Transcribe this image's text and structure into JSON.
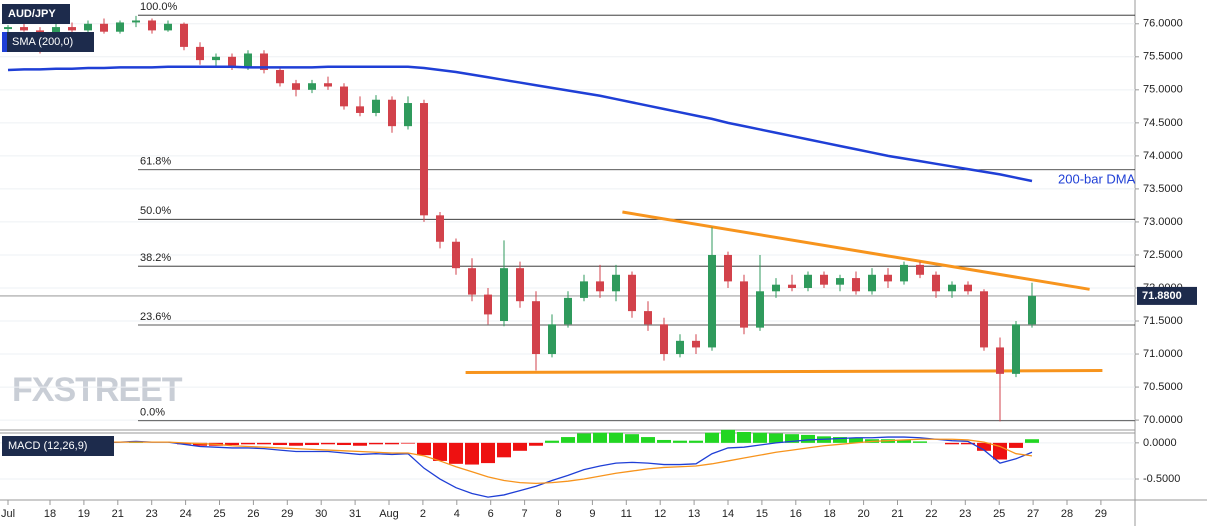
{
  "chart_data": [
    {
      "type": "candlestick",
      "title": "AUD/JPY",
      "up_color": "#2f9a5c",
      "down_color": "#d2424b",
      "candles": [
        [
          75.92,
          75.98,
          75.85,
          75.95
        ],
        [
          75.95,
          76.05,
          75.88,
          75.9
        ],
        [
          75.9,
          75.95,
          75.55,
          75.85
        ],
        [
          75.85,
          76.0,
          75.8,
          75.95
        ],
        [
          75.95,
          76.02,
          75.86,
          75.9
        ],
        [
          75.9,
          76.05,
          75.85,
          76.0
        ],
        [
          76.0,
          76.08,
          75.85,
          75.88
        ],
        [
          75.88,
          76.05,
          75.85,
          76.02
        ],
        [
          76.02,
          76.12,
          75.95,
          76.05
        ],
        [
          76.05,
          76.08,
          75.85,
          75.9
        ],
        [
          75.9,
          76.05,
          75.88,
          76.0
        ],
        [
          76.0,
          76.02,
          75.6,
          75.65
        ],
        [
          75.65,
          75.72,
          75.38,
          75.45
        ],
        [
          75.45,
          75.55,
          75.35,
          75.5
        ],
        [
          75.5,
          75.55,
          75.3,
          75.35
        ],
        [
          75.35,
          75.6,
          75.3,
          75.55
        ],
        [
          75.55,
          75.6,
          75.25,
          75.3
        ],
        [
          75.3,
          75.35,
          75.05,
          75.1
        ],
        [
          75.1,
          75.15,
          74.9,
          75.0
        ],
        [
          75.0,
          75.15,
          74.95,
          75.1
        ],
        [
          75.1,
          75.2,
          75.0,
          75.05
        ],
        [
          75.05,
          75.1,
          74.7,
          74.75
        ],
        [
          74.75,
          74.9,
          74.6,
          74.65
        ],
        [
          74.65,
          74.92,
          74.6,
          74.85
        ],
        [
          74.85,
          74.9,
          74.35,
          74.45
        ],
        [
          74.45,
          74.9,
          74.4,
          74.8
        ],
        [
          74.8,
          74.85,
          73.0,
          73.1
        ],
        [
          73.1,
          73.15,
          72.6,
          72.7
        ],
        [
          72.7,
          72.75,
          72.2,
          72.3
        ],
        [
          72.3,
          72.45,
          71.8,
          71.9
        ],
        [
          71.9,
          72.0,
          71.45,
          71.6
        ],
        [
          71.5,
          72.72,
          71.42,
          72.3
        ],
        [
          72.3,
          72.4,
          71.7,
          71.8
        ],
        [
          71.8,
          71.95,
          70.75,
          71.0
        ],
        [
          71.0,
          71.6,
          70.95,
          71.45
        ],
        [
          71.45,
          71.95,
          71.4,
          71.85
        ],
        [
          71.85,
          72.2,
          71.8,
          72.1
        ],
        [
          72.1,
          72.35,
          71.85,
          71.95
        ],
        [
          71.95,
          72.35,
          71.8,
          72.2
        ],
        [
          72.2,
          72.25,
          71.55,
          71.65
        ],
        [
          71.65,
          71.8,
          71.35,
          71.45
        ],
        [
          71.45,
          71.55,
          70.9,
          71.0
        ],
        [
          71.0,
          71.3,
          70.95,
          71.2
        ],
        [
          71.2,
          71.3,
          71.0,
          71.1
        ],
        [
          71.1,
          72.92,
          71.05,
          72.5
        ],
        [
          72.5,
          72.55,
          72.0,
          72.1
        ],
        [
          72.1,
          72.2,
          71.3,
          71.4
        ],
        [
          71.4,
          72.5,
          71.35,
          71.95
        ],
        [
          71.95,
          72.15,
          71.85,
          72.05
        ],
        [
          72.05,
          72.2,
          71.95,
          72.0
        ],
        [
          72.0,
          72.25,
          71.95,
          72.2
        ],
        [
          72.2,
          72.25,
          72.0,
          72.05
        ],
        [
          72.05,
          72.2,
          71.95,
          72.15
        ],
        [
          72.15,
          72.25,
          71.9,
          71.95
        ],
        [
          71.95,
          72.3,
          71.9,
          72.2
        ],
        [
          72.2,
          72.3,
          72.0,
          72.1
        ],
        [
          72.1,
          72.4,
          72.05,
          72.35
        ],
        [
          72.35,
          72.4,
          72.15,
          72.2
        ],
        [
          72.2,
          72.25,
          71.85,
          71.95
        ],
        [
          71.95,
          72.1,
          71.85,
          72.05
        ],
        [
          72.05,
          72.1,
          71.9,
          71.95
        ],
        [
          71.95,
          71.98,
          71.05,
          71.1
        ],
        [
          71.1,
          71.25,
          69.98,
          70.7
        ],
        [
          70.7,
          71.5,
          70.65,
          71.45
        ],
        [
          71.45,
          72.08,
          71.4,
          71.88
        ]
      ],
      "sma": {
        "name": "SMA (200,0)",
        "label": "200-bar DMA",
        "color": "#1f3fd6",
        "values": [
          75.3,
          75.31,
          75.31,
          75.32,
          75.32,
          75.33,
          75.33,
          75.34,
          75.34,
          75.34,
          75.35,
          75.35,
          75.35,
          75.35,
          75.35,
          75.34,
          75.34,
          75.34,
          75.34,
          75.34,
          75.35,
          75.35,
          75.35,
          75.35,
          75.35,
          75.35,
          75.33,
          75.3,
          75.27,
          75.23,
          75.19,
          75.15,
          75.11,
          75.07,
          75.03,
          74.99,
          74.95,
          74.91,
          74.86,
          74.81,
          74.76,
          74.71,
          74.66,
          74.61,
          74.56,
          74.5,
          74.45,
          74.4,
          74.35,
          74.3,
          74.25,
          74.2,
          74.15,
          74.1,
          74.05,
          74.0,
          73.96,
          73.92,
          73.88,
          73.84,
          73.8,
          73.76,
          73.72,
          73.67,
          73.62
        ]
      },
      "fib_levels": [
        {
          "label": "100.0%",
          "value": 76.13
        },
        {
          "label": "61.8%",
          "value": 73.79
        },
        {
          "label": "50.0%",
          "value": 73.04
        },
        {
          "label": "38.2%",
          "value": 72.33
        },
        {
          "label": "23.6%",
          "value": 71.44
        },
        {
          "label": "0.0%",
          "value": 69.99
        }
      ],
      "trendlines": [
        {
          "color": "#f7941d",
          "points": [
            [
              38.4,
              73.15
            ],
            [
              67.6,
              71.98
            ]
          ]
        },
        {
          "color": "#f7941d",
          "points": [
            [
              28.6,
              70.72
            ],
            [
              68.4,
              70.75
            ]
          ]
        }
      ],
      "last_price": {
        "value": 71.88,
        "label": "71.8800"
      },
      "watermark": "FXSTREET",
      "ylim": [
        69.85,
        76.36
      ],
      "yticks": [
        {
          "value": 70,
          "label": "70.0000"
        },
        {
          "value": 70.5,
          "label": "70.5000"
        },
        {
          "value": 71,
          "label": "71.0000"
        },
        {
          "value": 71.5,
          "label": "71.5000"
        },
        {
          "value": 72,
          "label": "72.0000"
        },
        {
          "value": 72.5,
          "label": "72.5000"
        },
        {
          "value": 73,
          "label": "73.0000"
        },
        {
          "value": 73.5,
          "label": "73.5000"
        },
        {
          "value": 74,
          "label": "74.0000"
        },
        {
          "value": 74.5,
          "label": "74.5000"
        },
        {
          "value": 75,
          "label": "75.0000"
        },
        {
          "value": 75.5,
          "label": "75.5000"
        },
        {
          "value": 76,
          "label": "76.0000"
        }
      ]
    },
    {
      "type": "macd",
      "title": "MACD (12,26,9)",
      "series": [
        {
          "name": "MACD",
          "color": "#1f3fd6",
          "values": [
            0.0,
            0.01,
            0.01,
            0.0,
            0.01,
            0.01,
            0.0,
            0.01,
            0.02,
            0.01,
            0.01,
            -0.02,
            -0.05,
            -0.06,
            -0.07,
            -0.07,
            -0.08,
            -0.1,
            -0.12,
            -0.12,
            -0.12,
            -0.14,
            -0.16,
            -0.15,
            -0.16,
            -0.15,
            -0.35,
            -0.5,
            -0.62,
            -0.7,
            -0.75,
            -0.72,
            -0.66,
            -0.6,
            -0.52,
            -0.45,
            -0.37,
            -0.32,
            -0.28,
            -0.27,
            -0.28,
            -0.3,
            -0.3,
            -0.29,
            -0.15,
            -0.07,
            -0.06,
            -0.03,
            0.0,
            0.02,
            0.04,
            0.05,
            0.06,
            0.07,
            0.07,
            0.08,
            0.08,
            0.07,
            0.05,
            0.03,
            0.02,
            -0.1,
            -0.28,
            -0.22,
            -0.13
          ]
        },
        {
          "name": "Signal",
          "color": "#f7941d",
          "values": [
            0.0,
            0.0,
            0.01,
            0.01,
            0.01,
            0.01,
            0.01,
            0.01,
            0.01,
            0.01,
            0.01,
            0.0,
            -0.01,
            -0.02,
            -0.04,
            -0.05,
            -0.06,
            -0.07,
            -0.08,
            -0.09,
            -0.1,
            -0.11,
            -0.12,
            -0.13,
            -0.14,
            -0.14,
            -0.18,
            -0.25,
            -0.33,
            -0.4,
            -0.47,
            -0.52,
            -0.55,
            -0.56,
            -0.55,
            -0.53,
            -0.5,
            -0.46,
            -0.42,
            -0.39,
            -0.36,
            -0.34,
            -0.33,
            -0.32,
            -0.29,
            -0.25,
            -0.21,
            -0.17,
            -0.13,
            -0.1,
            -0.07,
            -0.04,
            -0.02,
            0.0,
            0.02,
            0.03,
            0.04,
            0.05,
            0.05,
            0.05,
            0.04,
            0.01,
            -0.05,
            -0.15,
            -0.18
          ]
        }
      ],
      "histogram": {
        "up_color": "#22d622",
        "down_color": "#ee1111",
        "values": [
          0,
          0.01,
          0,
          -0.01,
          0,
          0,
          -0.01,
          0,
          0.01,
          0,
          0,
          -0.02,
          -0.04,
          -0.04,
          -0.03,
          -0.02,
          -0.02,
          -0.03,
          -0.04,
          -0.03,
          -0.02,
          -0.03,
          -0.04,
          -0.02,
          -0.02,
          -0.01,
          -0.17,
          -0.25,
          -0.29,
          -0.3,
          -0.28,
          -0.2,
          -0.11,
          -0.04,
          0.03,
          0.08,
          0.13,
          0.14,
          0.14,
          0.12,
          0.08,
          0.04,
          0.03,
          0.03,
          0.14,
          0.18,
          0.15,
          0.14,
          0.13,
          0.12,
          0.11,
          0.09,
          0.08,
          0.07,
          0.05,
          0.05,
          0.04,
          0.02,
          0,
          -0.02,
          -0.02,
          -0.11,
          -0.23,
          -0.07,
          0.05
        ]
      },
      "ylim": [
        -0.79,
        0.15
      ],
      "yticks": [
        {
          "value": 0,
          "label": "0.0000"
        },
        {
          "value": -0.5,
          "label": "-0.5000"
        }
      ],
      "xticks": [
        "Jul",
        "18",
        "19",
        "21",
        "23",
        "24",
        "25",
        "26",
        "29",
        "30",
        "31",
        "Aug",
        "2",
        "4",
        "6",
        "7",
        "8",
        "9",
        "11",
        "12",
        "13",
        "14",
        "15",
        "16",
        "18",
        "20",
        "21",
        "22",
        "23",
        "25",
        "27",
        "28",
        "29"
      ]
    }
  ]
}
